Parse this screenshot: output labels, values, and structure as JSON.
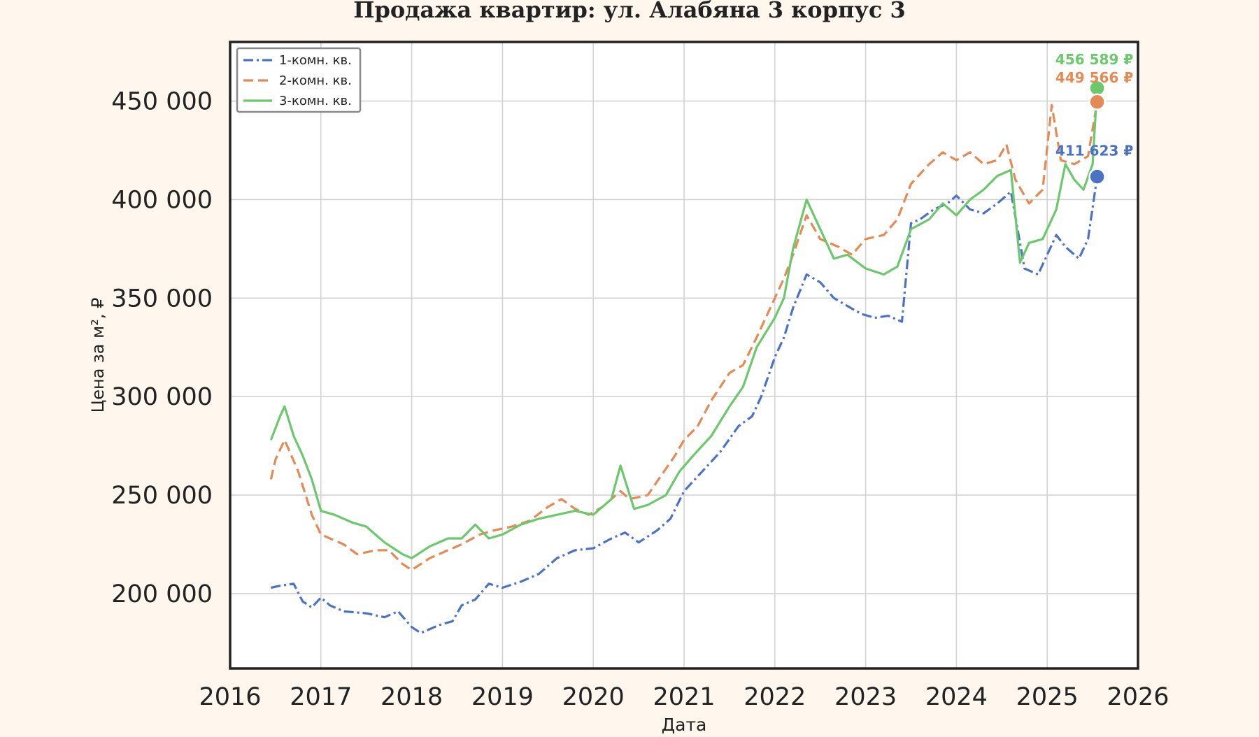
{
  "chart_data": {
    "type": "line",
    "title": "Продажа квартир: ул. Алабяна 3 корпус 3",
    "xlabel": "Дата",
    "ylabel": "Цена за м², ₽",
    "xlim": [
      2016,
      2026
    ],
    "ylim": [
      162000,
      480000
    ],
    "x_ticks": [
      2016,
      2017,
      2018,
      2019,
      2020,
      2021,
      2022,
      2023,
      2024,
      2025,
      2026
    ],
    "x_tick_labels": [
      "2016",
      "2017",
      "2018",
      "2019",
      "2020",
      "2021",
      "2022",
      "2023",
      "2024",
      "2025",
      "2026"
    ],
    "y_ticks": [
      200000,
      250000,
      300000,
      350000,
      400000,
      450000
    ],
    "y_tick_labels": [
      "200 000",
      "250 000",
      "300 000",
      "350 000",
      "400 000",
      "450 000"
    ],
    "grid": true,
    "legend_position": "top-left",
    "series": [
      {
        "name": "1-комн. кв.",
        "color": "#4c72c4",
        "dash": "dashdot",
        "x": [
          2016.45,
          2016.55,
          2016.7,
          2016.8,
          2016.9,
          2017.0,
          2017.1,
          2017.25,
          2017.5,
          2017.7,
          2017.85,
          2018.0,
          2018.1,
          2018.3,
          2018.45,
          2018.55,
          2018.7,
          2018.85,
          2019.0,
          2019.2,
          2019.4,
          2019.6,
          2019.8,
          2020.0,
          2020.2,
          2020.35,
          2020.5,
          2020.7,
          2020.85,
          2021.0,
          2021.2,
          2021.4,
          2021.6,
          2021.75,
          2021.85,
          2022.0,
          2022.1,
          2022.2,
          2022.35,
          2022.5,
          2022.65,
          2022.8,
          2022.95,
          2023.1,
          2023.25,
          2023.4,
          2023.5,
          2023.6,
          2023.75,
          2023.9,
          2024.0,
          2024.15,
          2024.3,
          2024.45,
          2024.6,
          2024.75,
          2024.9,
          2025.0,
          2025.1,
          2025.2,
          2025.35,
          2025.45,
          2025.55
        ],
        "values": [
          203000,
          204000,
          205000,
          196000,
          193000,
          198000,
          194000,
          191000,
          190000,
          188000,
          191000,
          183000,
          180000,
          184000,
          186000,
          194000,
          197000,
          205000,
          203000,
          206000,
          210000,
          218000,
          222000,
          223000,
          228000,
          231000,
          226000,
          232000,
          238000,
          252000,
          262000,
          272000,
          285000,
          290000,
          300000,
          320000,
          330000,
          345000,
          362000,
          358000,
          350000,
          346000,
          342000,
          340000,
          341000,
          338000,
          388000,
          390000,
          395000,
          398000,
          402000,
          395000,
          393000,
          398000,
          404000,
          365000,
          362000,
          372000,
          382000,
          376000,
          370000,
          380000,
          411623
        ]
      },
      {
        "name": "2-комн. кв.",
        "color": "#e48a55",
        "dash": "dashed",
        "x": [
          2016.45,
          2016.5,
          2016.6,
          2016.75,
          2016.9,
          2017.0,
          2017.1,
          2017.25,
          2017.4,
          2017.6,
          2017.75,
          2017.9,
          2018.0,
          2018.2,
          2018.4,
          2018.55,
          2018.75,
          2018.9,
          2019.1,
          2019.3,
          2019.5,
          2019.65,
          2019.8,
          2019.95,
          2020.1,
          2020.3,
          2020.4,
          2020.6,
          2020.75,
          2020.9,
          2021.0,
          2021.15,
          2021.3,
          2021.5,
          2021.65,
          2021.8,
          2021.95,
          2022.1,
          2022.2,
          2022.35,
          2022.5,
          2022.7,
          2022.85,
          2023.0,
          2023.2,
          2023.35,
          2023.5,
          2023.7,
          2023.85,
          2024.0,
          2024.15,
          2024.3,
          2024.45,
          2024.55,
          2024.65,
          2024.8,
          2024.95,
          2025.05,
          2025.15,
          2025.3,
          2025.45,
          2025.55
        ],
        "values": [
          258000,
          268000,
          278000,
          262000,
          240000,
          230000,
          228000,
          225000,
          220000,
          222000,
          222000,
          215000,
          212000,
          218000,
          222000,
          225000,
          230000,
          232000,
          234000,
          237000,
          244000,
          248000,
          243000,
          240000,
          244000,
          252000,
          248000,
          250000,
          260000,
          270000,
          278000,
          285000,
          298000,
          312000,
          316000,
          330000,
          345000,
          360000,
          372000,
          392000,
          380000,
          376000,
          372000,
          380000,
          382000,
          390000,
          408000,
          418000,
          424000,
          420000,
          424000,
          418000,
          420000,
          428000,
          410000,
          398000,
          405000,
          448000,
          420000,
          418000,
          422000,
          449566
        ]
      },
      {
        "name": "3-комн. кв.",
        "color": "#6cc86c",
        "dash": "solid",
        "x": [
          2016.45,
          2016.55,
          2016.6,
          2016.7,
          2016.8,
          2016.9,
          2017.0,
          2017.15,
          2017.35,
          2017.5,
          2017.7,
          2017.9,
          2018.0,
          2018.2,
          2018.4,
          2018.55,
          2018.7,
          2018.85,
          2019.0,
          2019.2,
          2019.4,
          2019.6,
          2019.8,
          2020.0,
          2020.2,
          2020.3,
          2020.45,
          2020.6,
          2020.8,
          2020.95,
          2021.1,
          2021.3,
          2021.5,
          2021.65,
          2021.8,
          2022.0,
          2022.1,
          2022.2,
          2022.35,
          2022.5,
          2022.65,
          2022.8,
          2023.0,
          2023.2,
          2023.35,
          2023.5,
          2023.7,
          2023.85,
          2024.0,
          2024.15,
          2024.3,
          2024.45,
          2024.6,
          2024.7,
          2024.8,
          2024.95,
          2025.1,
          2025.2,
          2025.3,
          2025.4,
          2025.5,
          2025.55
        ],
        "values": [
          278000,
          290000,
          295000,
          280000,
          270000,
          258000,
          242000,
          240000,
          236000,
          234000,
          226000,
          220000,
          218000,
          224000,
          228000,
          228000,
          235000,
          228000,
          230000,
          235000,
          238000,
          240000,
          242000,
          240000,
          248000,
          265000,
          243000,
          245000,
          250000,
          262000,
          270000,
          280000,
          295000,
          305000,
          325000,
          340000,
          350000,
          375000,
          400000,
          385000,
          370000,
          372000,
          365000,
          362000,
          366000,
          385000,
          390000,
          398000,
          392000,
          400000,
          405000,
          412000,
          415000,
          368000,
          378000,
          380000,
          395000,
          418000,
          410000,
          405000,
          418000,
          456589
        ]
      }
    ],
    "end_labels": [
      {
        "series": "3-комн. кв.",
        "text": "456 589 ₽",
        "value": 456589
      },
      {
        "series": "2-комн. кв.",
        "text": "449 566 ₽",
        "value": 449566
      },
      {
        "series": "1-комн. кв.",
        "text": "411 623 ₽",
        "value": 411623
      }
    ]
  }
}
